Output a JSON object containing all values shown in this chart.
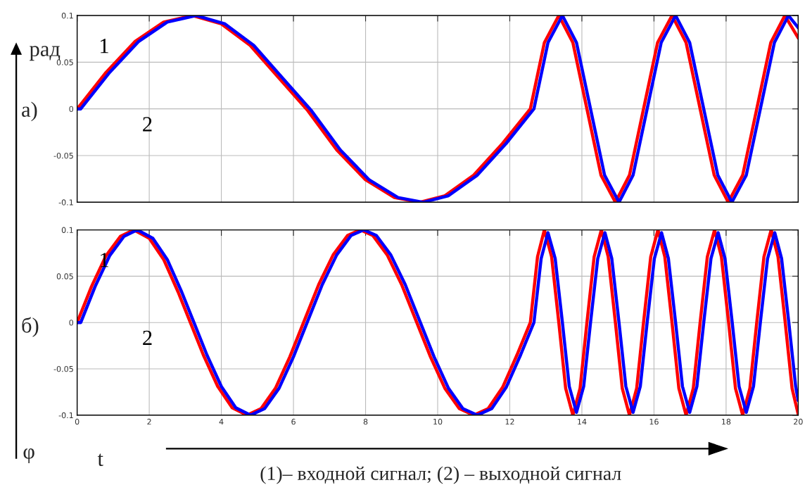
{
  "chart_data": [
    {
      "type": "line",
      "xlim": [
        0,
        20
      ],
      "xticks": [
        0,
        2,
        4,
        6,
        8,
        10,
        12,
        14,
        16,
        18,
        20
      ],
      "ylim": [
        -0.1,
        0.1
      ],
      "yticks": [
        -0.1,
        -0.05,
        0,
        0.05,
        0.1
      ],
      "grid": true,
      "tick_labels": "y",
      "annotations": [
        "а)",
        "рад"
      ],
      "series": [
        {
          "name": "1",
          "color": "#ff0000",
          "x": [
            0,
            0.8,
            1.6,
            2.4,
            3.2,
            4.0,
            4.8,
            5.6,
            6.4,
            7.2,
            8.0,
            8.8,
            9.5,
            10.2,
            11.0,
            11.8,
            12.57,
            12.96,
            13.36,
            13.75,
            14.14,
            14.53,
            14.93,
            15.32,
            15.71,
            16.1,
            16.5,
            16.89,
            17.28,
            17.67,
            18.06,
            18.46,
            18.85,
            19.24,
            19.63,
            20
          ],
          "values": [
            0,
            0.039,
            0.072,
            0.093,
            0.1,
            0.091,
            0.068,
            0.033,
            -0.002,
            -0.044,
            -0.076,
            -0.095,
            -0.1,
            -0.093,
            -0.071,
            -0.037,
            0,
            0.071,
            0.1,
            0.071,
            0,
            -0.071,
            -0.1,
            -0.071,
            0,
            0.071,
            0.1,
            0.071,
            0,
            -0.071,
            -0.1,
            -0.071,
            0,
            0.071,
            0.1,
            0.076
          ]
        },
        {
          "name": "2",
          "color": "#0000ff",
          "x": [
            0,
            0.1,
            0.9,
            1.7,
            2.5,
            3.3,
            4.1,
            4.9,
            5.7,
            6.5,
            7.3,
            8.1,
            8.9,
            9.6,
            10.3,
            11.1,
            11.9,
            12.67,
            13.06,
            13.46,
            13.85,
            14.24,
            14.63,
            15.03,
            15.42,
            15.81,
            16.2,
            16.6,
            16.99,
            17.38,
            17.77,
            18.16,
            18.56,
            18.95,
            19.34,
            19.73,
            20
          ],
          "values": [
            0,
            0,
            0.039,
            0.072,
            0.093,
            0.1,
            0.091,
            0.068,
            0.033,
            -0.002,
            -0.044,
            -0.076,
            -0.095,
            -0.1,
            -0.093,
            -0.071,
            -0.037,
            0,
            0.071,
            0.1,
            0.071,
            0,
            -0.071,
            -0.1,
            -0.071,
            0,
            0.071,
            0.1,
            0.071,
            0,
            -0.071,
            -0.1,
            -0.071,
            0,
            0.071,
            0.1,
            0.087
          ]
        }
      ]
    },
    {
      "type": "line",
      "xlim": [
        0,
        20
      ],
      "xticks": [
        0,
        2,
        4,
        6,
        8,
        10,
        12,
        14,
        16,
        18,
        20
      ],
      "ylim": [
        -0.1,
        0.1
      ],
      "yticks": [
        -0.1,
        -0.05,
        0,
        0.05,
        0.1
      ],
      "grid": true,
      "annotations": [
        "б)",
        "φ",
        "t",
        "(1)– входной сигнал; (2) – выходной сигнал"
      ],
      "series": [
        {
          "name": "1",
          "color": "#ff0000",
          "x": [
            0,
            0.4,
            0.8,
            1.2,
            1.57,
            2.0,
            2.4,
            2.8,
            3.14,
            3.5,
            3.9,
            4.3,
            4.71,
            5.1,
            5.5,
            5.9,
            6.28,
            6.7,
            7.1,
            7.5,
            7.85,
            8.2,
            8.6,
            9.0,
            9.42,
            9.8,
            10.2,
            10.6,
            11.0,
            11.4,
            11.8,
            12.2,
            12.57,
            12.77,
            12.96,
            13.16,
            13.36,
            13.55,
            13.75,
            13.95,
            14.14,
            14.34,
            14.54,
            14.73,
            14.93,
            15.12,
            15.32,
            15.52,
            15.71,
            15.91,
            16.11,
            16.3,
            16.5,
            16.69,
            16.89,
            17.09,
            17.28,
            17.48,
            17.68,
            17.87,
            18.07,
            18.26,
            18.46,
            18.66,
            18.85,
            19.05,
            19.25,
            19.44,
            19.64,
            19.83,
            20
          ],
          "values": [
            0,
            0.039,
            0.072,
            0.093,
            0.1,
            0.091,
            0.068,
            0.033,
            0,
            -0.035,
            -0.069,
            -0.092,
            -0.1,
            -0.093,
            -0.071,
            -0.037,
            0,
            0.041,
            0.073,
            0.094,
            0.1,
            0.094,
            0.073,
            0.041,
            0,
            -0.037,
            -0.071,
            -0.093,
            -0.1,
            -0.093,
            -0.07,
            -0.035,
            0,
            0.071,
            0.1,
            0.071,
            0,
            -0.071,
            -0.1,
            -0.071,
            0,
            0.071,
            0.1,
            0.071,
            0,
            -0.071,
            -0.1,
            -0.071,
            0,
            0.071,
            0.1,
            0.071,
            0,
            -0.071,
            -0.1,
            -0.071,
            0,
            0.071,
            0.1,
            0.071,
            0,
            -0.071,
            -0.1,
            -0.071,
            0,
            0.071,
            0.1,
            0.071,
            0,
            -0.071,
            -0.099
          ]
        },
        {
          "name": "2",
          "color": "#0000ff",
          "x": [
            0,
            0.1,
            0.5,
            0.9,
            1.3,
            1.67,
            2.1,
            2.5,
            2.9,
            3.24,
            3.6,
            4.0,
            4.4,
            4.81,
            5.2,
            5.6,
            6.0,
            6.38,
            6.8,
            7.2,
            7.6,
            7.95,
            8.3,
            8.7,
            9.1,
            9.52,
            9.9,
            10.3,
            10.7,
            11.1,
            11.5,
            11.9,
            12.3,
            12.67,
            12.87,
            13.06,
            13.26,
            13.46,
            13.65,
            13.85,
            14.05,
            14.24,
            14.44,
            14.64,
            14.83,
            15.03,
            15.22,
            15.42,
            15.62,
            15.81,
            16.01,
            16.21,
            16.4,
            16.6,
            16.79,
            16.99,
            17.19,
            17.38,
            17.58,
            17.78,
            17.97,
            18.17,
            18.36,
            18.56,
            18.76,
            18.95,
            19.15,
            19.35,
            19.54,
            19.74,
            19.93,
            20
          ],
          "values": [
            0,
            0,
            0.039,
            0.072,
            0.093,
            0.1,
            0.091,
            0.068,
            0.033,
            0,
            -0.035,
            -0.069,
            -0.092,
            -0.1,
            -0.093,
            -0.071,
            -0.037,
            0,
            0.041,
            0.073,
            0.094,
            0.1,
            0.094,
            0.073,
            0.041,
            0,
            -0.037,
            -0.071,
            -0.093,
            -0.1,
            -0.093,
            -0.07,
            -0.035,
            0,
            0.069,
            0.097,
            0.069,
            0,
            -0.069,
            -0.097,
            -0.069,
            0,
            0.069,
            0.097,
            0.069,
            0,
            -0.069,
            -0.097,
            -0.069,
            0,
            0.069,
            0.097,
            0.069,
            0,
            -0.069,
            -0.097,
            -0.069,
            0,
            0.069,
            0.097,
            0.069,
            0,
            -0.069,
            -0.097,
            -0.069,
            0,
            0.069,
            0.097,
            0.069,
            0,
            -0.069,
            -0.084
          ]
        }
      ]
    }
  ]
}
